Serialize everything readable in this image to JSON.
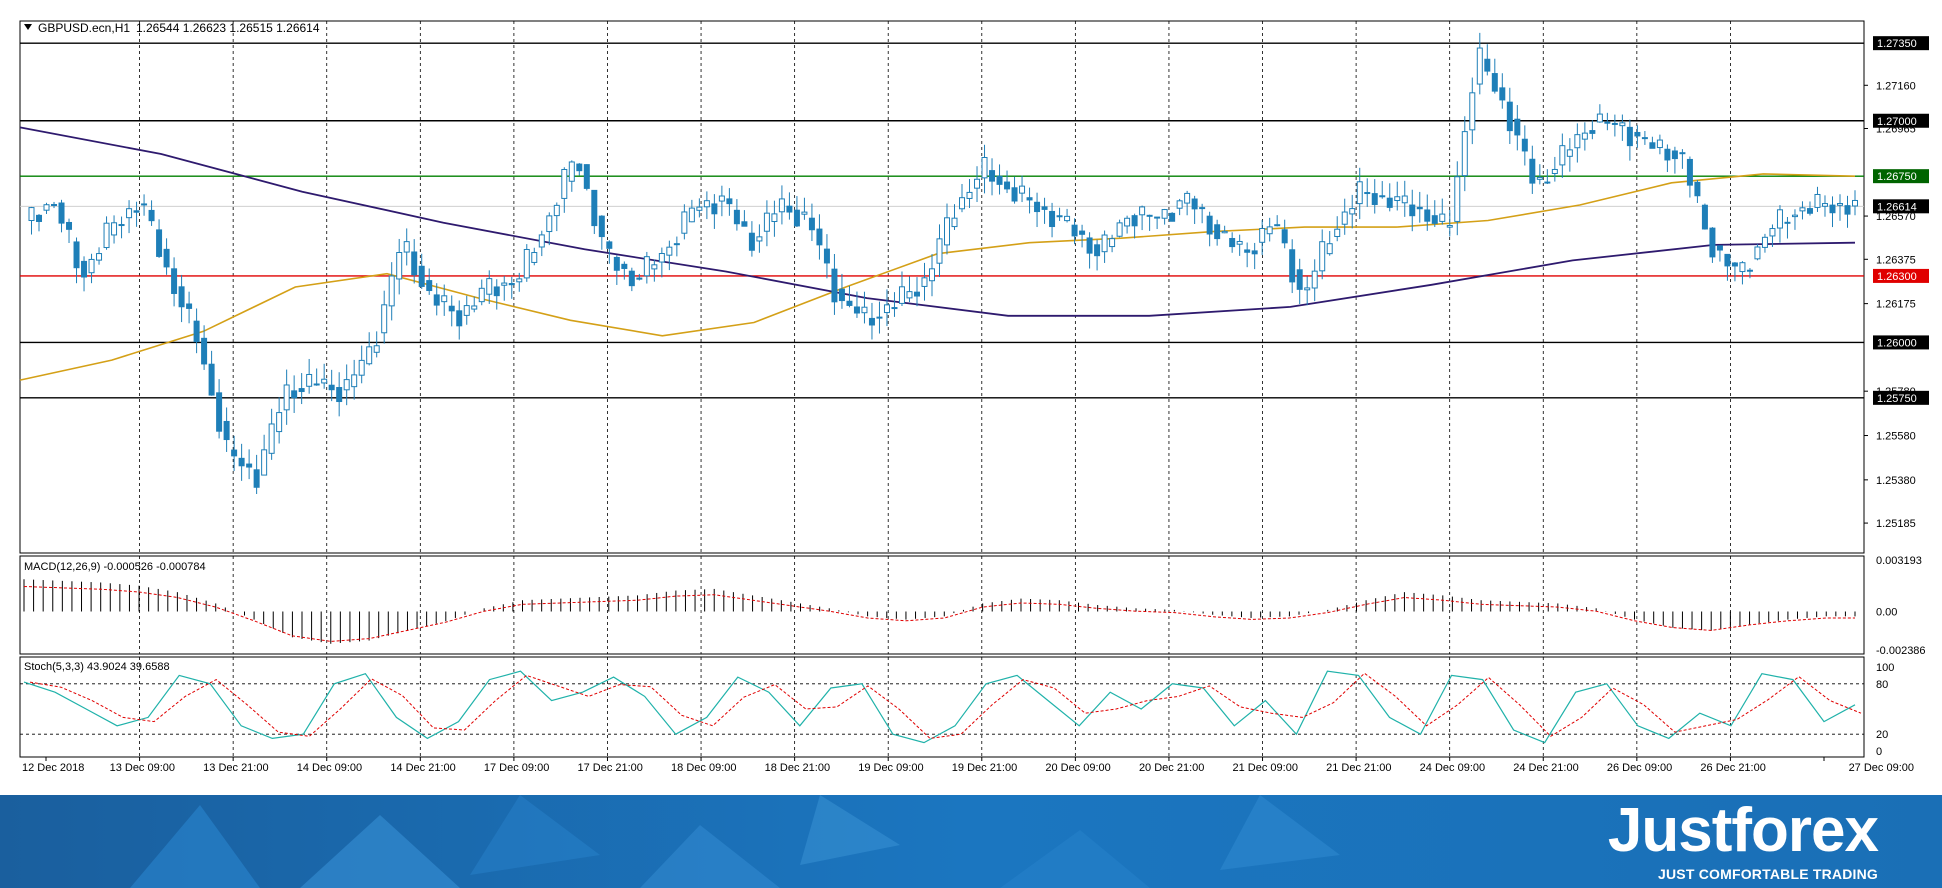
{
  "header": {
    "symbol": "GBPUSD.ecn,H1",
    "ohlc": "1.26544 1.26623 1.26515 1.26614"
  },
  "price_axis": {
    "labels": [
      "1.27160",
      "1.26965",
      "1.26570",
      "1.26375",
      "1.26175",
      "1.25780",
      "1.25580",
      "1.25380",
      "1.25185"
    ]
  },
  "price_tags": [
    {
      "price": 1.2735,
      "label": "1.27350",
      "color": "#000000"
    },
    {
      "price": 1.27,
      "label": "1.27000",
      "color": "#000000"
    },
    {
      "price": 1.2675,
      "label": "1.26750",
      "color": "#006400"
    },
    {
      "price": 1.26614,
      "label": "1.26614",
      "color": "#000000"
    },
    {
      "price": 1.263,
      "label": "1.26300",
      "color": "#e00000"
    },
    {
      "price": 1.26,
      "label": "1.26000",
      "color": "#000000"
    },
    {
      "price": 1.2575,
      "label": "1.25750",
      "color": "#000000"
    }
  ],
  "levels": [
    {
      "price": 1.2735,
      "color": "#000000"
    },
    {
      "price": 1.27,
      "color": "#000000"
    },
    {
      "price": 1.2675,
      "color": "#008000"
    },
    {
      "price": 1.263,
      "color": "#e00000"
    },
    {
      "price": 1.26,
      "color": "#000000"
    },
    {
      "price": 1.2575,
      "color": "#000000"
    }
  ],
  "time_axis": {
    "labels": [
      "12 Dec 2018",
      "13 Dec 09:00",
      "13 Dec 21:00",
      "14 Dec 09:00",
      "14 Dec 21:00",
      "17 Dec 09:00",
      "17 Dec 21:00",
      "18 Dec 09:00",
      "18 Dec 21:00",
      "19 Dec 09:00",
      "19 Dec 21:00",
      "20 Dec 09:00",
      "20 Dec 21:00",
      "21 Dec 09:00",
      "21 Dec 21:00",
      "24 Dec 09:00",
      "24 Dec 21:00",
      "26 Dec 09:00",
      "26 Dec 21:00",
      "27 Dec 09:00"
    ]
  },
  "macd": {
    "label": "MACD(12,26,9) -0.000526 -0.000784",
    "axis_labels": [
      "0.003193",
      "0.00",
      "-0.002386"
    ],
    "range": [
      -0.002386,
      0.003193
    ]
  },
  "stoch": {
    "label": "Stoch(5,3,3) 43.9024 39.6588",
    "axis_labels": [
      "100",
      "80",
      "20",
      "0"
    ],
    "levels": [
      80,
      20
    ]
  },
  "brand": {
    "name": "Justforex",
    "tagline": "JUST COMFORTABLE TRADING"
  },
  "colors": {
    "bull_candle": "#1e7fb8",
    "bear_candle": "#1e7fb8",
    "ma_fast": "#d4a017",
    "ma_slow": "#2e1a6e",
    "macd_signal": "#e00000",
    "stoch_main": "#20b2aa",
    "stoch_signal": "#e00000",
    "brand_band": "#1a6fb6"
  },
  "chart_data": {
    "type": "line",
    "title": "GBPUSD.ecn,H1",
    "timeframe": "H1",
    "x": [
      "12 Dec 2018",
      "13 Dec 09:00",
      "13 Dec 21:00",
      "14 Dec 09:00",
      "14 Dec 21:00",
      "17 Dec 09:00",
      "17 Dec 21:00",
      "18 Dec 09:00",
      "18 Dec 21:00",
      "19 Dec 09:00",
      "19 Dec 21:00",
      "20 Dec 09:00",
      "20 Dec 21:00",
      "21 Dec 09:00",
      "21 Dec 21:00",
      "24 Dec 09:00",
      "24 Dec 21:00",
      "26 Dec 09:00",
      "26 Dec 21:00",
      "27 Dec 09:00"
    ],
    "close_path": [
      1.2655,
      1.2664,
      1.263,
      1.2652,
      1.2664,
      1.263,
      1.26,
      1.255,
      1.254,
      1.2578,
      1.2582,
      1.2578,
      1.2598,
      1.2645,
      1.262,
      1.2612,
      1.2625,
      1.2628,
      1.2655,
      1.2685,
      1.264,
      1.2628,
      1.264,
      1.266,
      1.2665,
      1.2645,
      1.2662,
      1.2655,
      1.262,
      1.261,
      1.2618,
      1.2628,
      1.266,
      1.2678,
      1.2668,
      1.266,
      1.2652,
      1.264,
      1.2658,
      1.2656,
      1.2665,
      1.265,
      1.264,
      1.2655,
      1.262,
      1.265,
      1.2668,
      1.2664,
      1.266,
      1.265,
      1.273,
      1.2705,
      1.267,
      1.2685,
      1.27,
      1.2697,
      1.2688,
      1.2685,
      1.2645,
      1.263,
      1.265,
      1.266,
      1.2662,
      1.26614
    ],
    "ma_fast": [
      1.2583,
      1.2592,
      1.2605,
      1.2625,
      1.2631,
      1.262,
      1.261,
      1.2603,
      1.2609,
      1.2625,
      1.264,
      1.2645,
      1.2647,
      1.265,
      1.2652,
      1.2652,
      1.2655,
      1.2662,
      1.2672,
      1.2676,
      1.2675
    ],
    "ma_slow": [
      1.2697,
      1.2685,
      1.2668,
      1.2654,
      1.2642,
      1.2632,
      1.262,
      1.2612,
      1.2612,
      1.2616,
      1.2626,
      1.2637,
      1.2644,
      1.2645
    ],
    "macd_hist": [
      0.002,
      0.0019,
      0.0018,
      0.0016,
      0.0012,
      0.0005,
      -0.0005,
      -0.0016,
      -0.002,
      -0.0018,
      -0.0012,
      -0.0006,
      0.0002,
      0.0007,
      0.0008,
      0.0009,
      0.001,
      0.0013,
      0.0014,
      0.001,
      0.0006,
      0.0002,
      -0.0003,
      -0.0005,
      -0.0003,
      0.0005,
      0.0008,
      0.0007,
      0.0004,
      0.0002,
      0.0001,
      -0.0002,
      -0.0004,
      -0.0003,
      0.0001,
      0.0007,
      0.0012,
      0.001,
      0.0007,
      0.0006,
      0.0005,
      0.0002,
      -0.0005,
      -0.001,
      -0.0012,
      -0.0008,
      -0.0005,
      -0.0003
    ],
    "stoch_main": [
      82,
      70,
      50,
      30,
      40,
      90,
      80,
      30,
      15,
      20,
      80,
      92,
      40,
      15,
      35,
      85,
      95,
      60,
      70,
      88,
      65,
      20,
      40,
      88,
      70,
      30,
      75,
      80,
      20,
      10,
      30,
      80,
      90,
      60,
      30,
      70,
      50,
      80,
      75,
      30,
      60,
      20,
      95,
      90,
      40,
      20,
      90,
      85,
      25,
      10,
      70,
      80,
      30,
      15,
      45,
      30,
      92,
      85,
      35,
      55
    ],
    "ylim": [
      1.2505,
      1.2745
    ]
  }
}
